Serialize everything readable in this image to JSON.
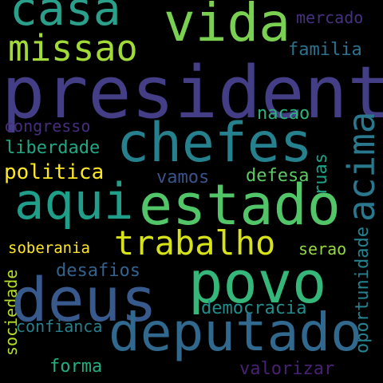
{
  "background_color": "#000000",
  "words": [
    {
      "id": "casa",
      "text": "casa",
      "color": "#2a9f8a"
    },
    {
      "id": "vida",
      "text": "vida",
      "color": "#7ad151"
    },
    {
      "id": "missao",
      "text": "missao",
      "color": "#a2da37"
    },
    {
      "id": "mercado",
      "text": "mercado",
      "color": "#46317e"
    },
    {
      "id": "familia",
      "text": "familia",
      "color": "#2d718e"
    },
    {
      "id": "presidente",
      "text": "presidente",
      "color": "#433e85"
    },
    {
      "id": "chefes",
      "text": "chefes",
      "color": "#26818e"
    },
    {
      "id": "congresso",
      "text": "congresso",
      "color": "#472d7b"
    },
    {
      "id": "nacao",
      "text": "nacao",
      "color": "#2db27d"
    },
    {
      "id": "acima",
      "text": "acima",
      "color": "#2a788e"
    },
    {
      "id": "liberdade",
      "text": "liberdade",
      "color": "#22a785"
    },
    {
      "id": "ruas",
      "text": "ruas",
      "color": "#1fa187"
    },
    {
      "id": "politica",
      "text": "politica",
      "color": "#fde725"
    },
    {
      "id": "vamos",
      "text": "vamos",
      "color": "#3b528b"
    },
    {
      "id": "defesa",
      "text": "defesa",
      "color": "#5ec962"
    },
    {
      "id": "aqui",
      "text": "aqui",
      "color": "#1f9e89"
    },
    {
      "id": "estado",
      "text": "estado",
      "color": "#52c569"
    },
    {
      "id": "trabalho",
      "text": "trabalho",
      "color": "#d8e219"
    },
    {
      "id": "soberania",
      "text": "soberania",
      "color": "#fde725"
    },
    {
      "id": "desafios",
      "text": "desafios",
      "color": "#33628d"
    },
    {
      "id": "povo",
      "text": "povo",
      "color": "#35b779"
    },
    {
      "id": "serao",
      "text": "serao",
      "color": "#93d741"
    },
    {
      "id": "oportunidade",
      "text": "oportunidade",
      "color": "#26828e"
    },
    {
      "id": "sociedade",
      "text": "sociedade",
      "color": "#b5de2b"
    },
    {
      "id": "deus",
      "text": "deus",
      "color": "#38598c"
    },
    {
      "id": "democracia",
      "text": "democracia",
      "color": "#218e8d"
    },
    {
      "id": "confianca",
      "text": "confianca",
      "color": "#277f8e"
    },
    {
      "id": "deputado",
      "text": "deputado",
      "color": "#31688e"
    },
    {
      "id": "forma",
      "text": "forma",
      "color": "#26ad81"
    },
    {
      "id": "valorizar",
      "text": "valorizar",
      "color": "#482173"
    }
  ]
}
